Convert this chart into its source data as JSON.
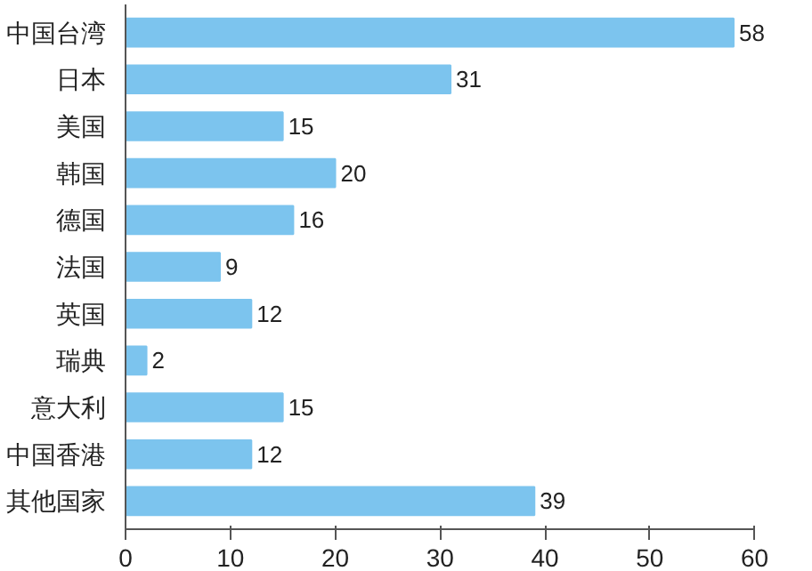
{
  "chart_data": {
    "type": "bar",
    "orientation": "horizontal",
    "categories": [
      "中国台湾",
      "日本",
      "美国",
      "韩国",
      "德国",
      "法国",
      "英国",
      "瑞典",
      "意大利",
      "中国香港",
      "其他国家"
    ],
    "values": [
      58,
      31,
      15,
      20,
      16,
      9,
      12,
      2,
      15,
      12,
      39
    ],
    "color": "#7cc4ee",
    "xlim": [
      0,
      60
    ],
    "xticks": [
      0,
      10,
      20,
      30,
      40,
      50,
      60
    ],
    "grid": false,
    "data_labels": true
  }
}
